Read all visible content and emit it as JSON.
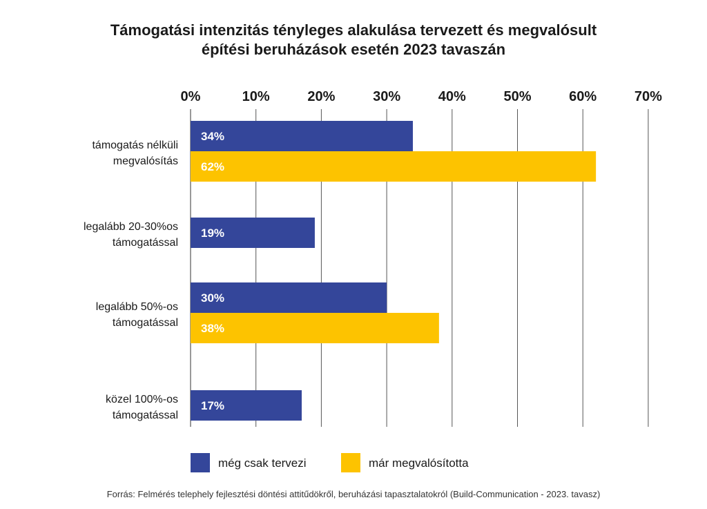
{
  "chart_data": {
    "type": "bar",
    "orientation": "horizontal",
    "title_lines": [
      "Támogatási intenzitás tényleges alakulása tervezett és megvalósult",
      "építési beruházások esetén 2023 tavaszán"
    ],
    "categories": [
      [
        "támogatás nélküli",
        "megvalósítás"
      ],
      [
        "legalább 20-30%os",
        "támogatással"
      ],
      [
        "legalább 50%-os",
        "támogatással"
      ],
      [
        "közel 100%-os",
        "támogatással"
      ]
    ],
    "series": [
      {
        "name": "még csak tervezi",
        "color": "#34469a",
        "values": [
          34,
          19,
          30,
          17
        ],
        "labels": [
          "34%",
          "19%",
          "30%",
          "17%"
        ]
      },
      {
        "name": "már megvalósította",
        "color": "#fdc300",
        "values": [
          62,
          null,
          38,
          null
        ],
        "labels": [
          "62%",
          "",
          "38%",
          ""
        ]
      }
    ],
    "xlim": [
      0,
      70
    ],
    "ticks": [
      0,
      10,
      20,
      30,
      40,
      50,
      60,
      70
    ],
    "tick_labels": [
      "0%",
      "10%",
      "20%",
      "30%",
      "40%",
      "50%",
      "60%",
      "70%"
    ],
    "x_axis_position": "top",
    "grid": true,
    "legend_position": "bottom",
    "source": "Forrás: Felmérés telephely fejlesztési döntési attitűdökről, beruházási tapasztalatokról (Build-Communication - 2023. tavasz)"
  }
}
